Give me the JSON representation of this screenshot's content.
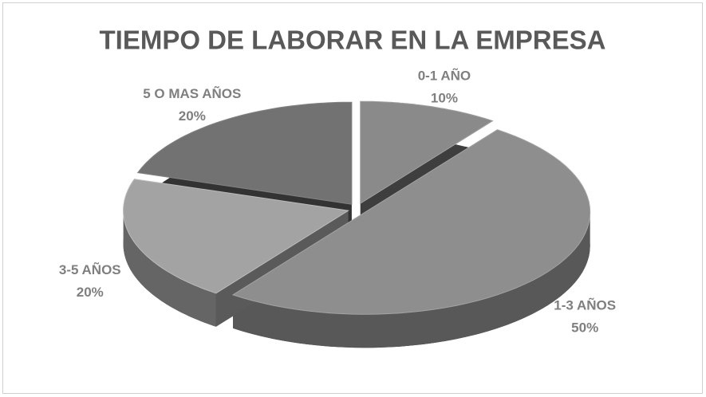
{
  "chart_data": {
    "type": "pie",
    "title": "TIEMPO DE LABORAR EN LA EMPRESA",
    "categories": [
      "0-1 AÑO",
      "1-3 AÑOS",
      "3-5 AÑOS",
      "5 O MAS AÑOS"
    ],
    "values": [
      10,
      50,
      20,
      20
    ],
    "value_labels": [
      "10%",
      "50%",
      "20%",
      "20%"
    ],
    "colors": [
      "#8a8a8a",
      "#8e8e8e",
      "#a3a3a3",
      "#727272"
    ]
  }
}
